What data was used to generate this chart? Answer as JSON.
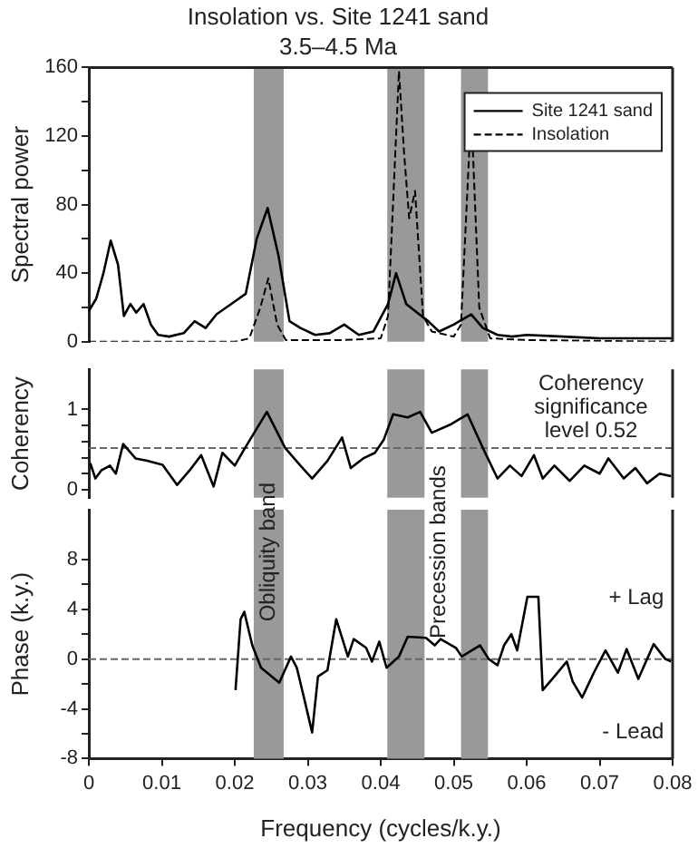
{
  "chart_data": [
    {
      "type": "line",
      "title": "Insolation vs. Site 1241 sand",
      "subtitle": "3.5–4.5 Ma",
      "ylabel": "Spectral power",
      "xlim": [
        0,
        0.08
      ],
      "tick_labels": "y",
      "ylim": [
        0,
        160
      ],
      "yticks": [
        0,
        {
          "value": 20,
          "label": null
        },
        40,
        {
          "value": 60,
          "label": null
        },
        80,
        {
          "value": 100,
          "label": null
        },
        120,
        {
          "value": 140,
          "label": null
        },
        160
      ],
      "grid": false,
      "legend": "top right",
      "series": [
        {
          "name": "Site 1241 sand",
          "color": "#000000",
          "x": [
            0,
            0.001,
            0.002,
            0.003,
            0.004,
            0.0048,
            0.0057,
            0.0065,
            0.0075,
            0.0085,
            0.0095,
            0.011,
            0.013,
            0.0145,
            0.016,
            0.0175,
            0.0195,
            0.0215,
            0.023,
            0.0245,
            0.026,
            0.0275,
            0.029,
            0.031,
            0.033,
            0.035,
            0.037,
            0.039,
            0.041,
            0.0421,
            0.0435,
            0.045,
            0.0465,
            0.048,
            0.05,
            0.0524,
            0.054,
            0.056,
            0.058,
            0.06,
            0.065,
            0.07,
            0.075,
            0.08
          ],
          "values": [
            18,
            25,
            40,
            59,
            45,
            15,
            22,
            17,
            22,
            10,
            4,
            3,
            5,
            12,
            8,
            16,
            22,
            28,
            60,
            78,
            50,
            12,
            8,
            4,
            5,
            10,
            4,
            6,
            22,
            40,
            22,
            17,
            12,
            6,
            10,
            16,
            8,
            4,
            3,
            4,
            3,
            2,
            2,
            2
          ]
        },
        {
          "name": "Insolation",
          "color": "#000000",
          "line_style": "dashed",
          "x": [
            0,
            0.02,
            0.022,
            0.0235,
            0.0246,
            0.0258,
            0.027,
            0.035,
            0.04,
            0.041,
            0.0425,
            0.0432,
            0.0439,
            0.0447,
            0.0458,
            0.047,
            0.05,
            0.051,
            0.0524,
            0.0535,
            0.055,
            0.06,
            0.08
          ],
          "values": [
            0,
            0,
            2,
            20,
            37,
            10,
            1,
            1,
            2,
            15,
            158,
            110,
            72,
            88,
            15,
            6,
            3,
            10,
            135,
            20,
            2,
            1,
            0
          ]
        }
      ],
      "bands": [
        {
          "axis": "x",
          "from": 0.0226,
          "to": 0.0267,
          "color": "#999999"
        },
        {
          "axis": "x",
          "from": 0.0409,
          "to": 0.046,
          "color": "#999999"
        },
        {
          "axis": "x",
          "from": 0.051,
          "to": 0.0547,
          "color": "#999999"
        }
      ]
    },
    {
      "type": "line",
      "ylabel": "Coherency",
      "xlim": [
        0,
        0.08
      ],
      "tick_labels": "y",
      "ylim": [
        -0.1,
        1.5
      ],
      "yticks": [
        0,
        {
          "value": 0.2,
          "label": null
        },
        {
          "value": 0.4,
          "label": null
        },
        {
          "value": 0.6,
          "label": null
        },
        {
          "value": 0.8,
          "label": null
        },
        1
      ],
      "grid": false,
      "series": [
        {
          "color": "#000000",
          "x": [
            0.0002,
            0.0009,
            0.0017,
            0.0029,
            0.0037,
            0.0047,
            0.0064,
            0.008,
            0.0101,
            0.0121,
            0.0138,
            0.0154,
            0.0171,
            0.0183,
            0.02,
            0.0212,
            0.0244,
            0.0269,
            0.029,
            0.0306,
            0.0327,
            0.0347,
            0.0359,
            0.0376,
            0.0392,
            0.0404,
            0.0417,
            0.0437,
            0.0454,
            0.047,
            0.0495,
            0.0519,
            0.054,
            0.056,
            0.0577,
            0.0593,
            0.061,
            0.0622,
            0.0638,
            0.0659,
            0.0679,
            0.07,
            0.0712,
            0.0733,
            0.0749,
            0.0765,
            0.0782,
            0.0798
          ],
          "values": [
            0.33,
            0.14,
            0.24,
            0.3,
            0.2,
            0.57,
            0.39,
            0.36,
            0.31,
            0.06,
            0.24,
            0.43,
            0.04,
            0.46,
            0.3,
            0.49,
            0.97,
            0.52,
            0.3,
            0.14,
            0.36,
            0.65,
            0.27,
            0.39,
            0.46,
            0.62,
            0.94,
            0.9,
            0.97,
            0.71,
            0.81,
            0.94,
            0.52,
            0.14,
            0.3,
            0.17,
            0.43,
            0.14,
            0.3,
            0.11,
            0.3,
            0.2,
            0.39,
            0.14,
            0.27,
            0.08,
            0.2,
            0.17
          ]
        }
      ],
      "bands": [
        {
          "axis": "x",
          "from": 0.0226,
          "to": 0.0267,
          "color": "#999999"
        },
        {
          "axis": "x",
          "from": 0.0409,
          "to": 0.046,
          "color": "#999999"
        },
        {
          "axis": "x",
          "from": 0.051,
          "to": 0.0547,
          "color": "#999999"
        }
      ],
      "ref_lines": [
        {
          "axis": "y",
          "value": 0.52,
          "label": "Coherency significance level 0.52",
          "line_style": "dashed",
          "color": "#666666"
        }
      ]
    },
    {
      "type": "line",
      "xlabel": "Frequency (cycles/k.y.)",
      "ylabel": "Phase (k.y.)",
      "xlim": [
        0,
        0.08
      ],
      "xticks": [
        0,
        0.01,
        0.02,
        0.03,
        0.04,
        0.05,
        0.06,
        0.07,
        0.08
      ],
      "ylim": [
        -8,
        12
      ],
      "yticks": [
        -8,
        {
          "value": -6,
          "label": null
        },
        -4,
        {
          "value": -2,
          "label": null
        },
        0,
        {
          "value": 2,
          "label": null
        },
        4,
        {
          "value": 6,
          "label": null
        },
        8
      ],
      "grid": false,
      "series": [
        {
          "color": "#000000",
          "x": [
            0.0201,
            0.0208,
            0.0213,
            0.0224,
            0.0236,
            0.0261,
            0.0277,
            0.0285,
            0.0294,
            0.0306,
            0.0314,
            0.0327,
            0.0339,
            0.0355,
            0.0363,
            0.038,
            0.0388,
            0.0398,
            0.0408,
            0.0425,
            0.0437,
            0.0462,
            0.0474,
            0.0482,
            0.0503,
            0.0511,
            0.0536,
            0.0548,
            0.056,
            0.0569,
            0.0579,
            0.0587,
            0.0601,
            0.0616,
            0.0622,
            0.0638,
            0.0655,
            0.0663,
            0.0676,
            0.0692,
            0.0708,
            0.0725,
            0.0737,
            0.0753,
            0.0774,
            0.079,
            0.0798
          ],
          "values": [
            -2.5,
            3.2,
            3.8,
            1.1,
            -0.7,
            -1.9,
            0.2,
            -0.7,
            -2.9,
            -5.9,
            -1.4,
            -0.9,
            3.2,
            0.2,
            1.6,
            0.9,
            -0.2,
            1.4,
            -0.7,
            0.2,
            1.8,
            1.7,
            1.1,
            1.6,
            0.9,
            0.2,
            1.1,
            0,
            -0.5,
            1.1,
            2,
            0.7,
            5,
            5,
            -2.5,
            -1.4,
            -0.2,
            -1.8,
            -3.1,
            -1.1,
            0.7,
            -1.1,
            0.8,
            -1.6,
            1.2,
            0,
            -0.2
          ]
        }
      ],
      "bands": [
        {
          "axis": "x",
          "from": 0.0226,
          "to": 0.0267,
          "color": "#999999",
          "label": "Obliquity band"
        },
        {
          "axis": "x",
          "from": 0.0409,
          "to": 0.046,
          "color": "#999999"
        },
        {
          "axis": "x",
          "from": 0.051,
          "to": 0.0547,
          "color": "#999999"
        }
      ],
      "ref_lines": [
        {
          "axis": "y",
          "value": 0,
          "line_style": "dashed",
          "color": "#666666"
        }
      ],
      "annotations": [
        "Precession bands",
        "+ Lag",
        "- Lead"
      ]
    }
  ]
}
